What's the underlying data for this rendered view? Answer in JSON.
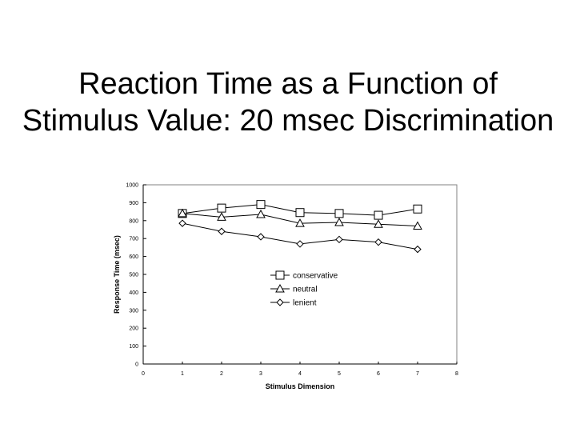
{
  "slide": {
    "title_line1": "Reaction Time as a Function of",
    "title_line2": "Stimulus Value: 20 msec Discrimination"
  },
  "chart_data": {
    "type": "line",
    "title": "",
    "xlabel": "Stimulus Dimension",
    "ylabel": "Response Time (msec)",
    "xlim": [
      0,
      8
    ],
    "ylim": [
      0,
      1000
    ],
    "x_ticks": [
      0,
      1,
      2,
      3,
      4,
      5,
      6,
      7,
      8
    ],
    "y_ticks": [
      0,
      100,
      200,
      300,
      400,
      500,
      600,
      700,
      800,
      900,
      1000
    ],
    "grid": false,
    "legend_position": "center",
    "x": [
      1,
      2,
      3,
      4,
      5,
      6,
      7
    ],
    "series": [
      {
        "name": "conservative",
        "marker": "square",
        "values": [
          840,
          870,
          890,
          845,
          840,
          830,
          865
        ]
      },
      {
        "name": "neutral",
        "marker": "triangle",
        "values": [
          840,
          820,
          835,
          785,
          790,
          780,
          770
        ]
      },
      {
        "name": "lenient",
        "marker": "diamond",
        "values": [
          785,
          740,
          710,
          670,
          695,
          680,
          640
        ]
      }
    ]
  }
}
